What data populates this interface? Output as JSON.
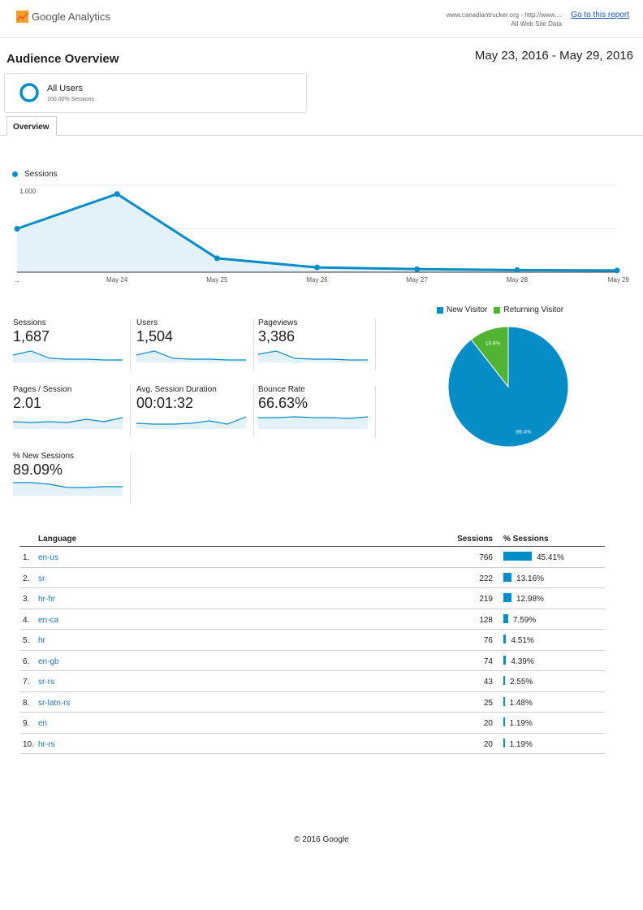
{
  "header": {
    "app_name": "Google Analytics",
    "site_line1": "www.canadiantrucker.org - http://www....",
    "site_line2": "All Web Site Data",
    "goto_link": "Go to this report"
  },
  "page": {
    "title": "Audience Overview",
    "date_range": "May 23, 2016 - May 29, 2016"
  },
  "segment": {
    "name": "All Users",
    "subtitle": "100.00% Sessions"
  },
  "tabs": [
    {
      "label": "Overview"
    }
  ],
  "colors": {
    "accent": "#058dc7",
    "returning": "#50b432",
    "link": "#1a73c8"
  },
  "chart_data": [
    {
      "type": "line",
      "legend": "Sessions",
      "categories": [
        "...",
        "May 24",
        "May 25",
        "May 26",
        "May 27",
        "May 28",
        "May 29"
      ],
      "values": [
        500,
        900,
        160,
        55,
        35,
        25,
        20
      ],
      "y_ticks": [
        "1,000",
        "500"
      ],
      "ylim": [
        0,
        1000
      ]
    },
    {
      "type": "pie",
      "series": [
        {
          "name": "New Visitor",
          "value": 89.4,
          "label": "89.4%"
        },
        {
          "name": "Returning Visitor",
          "value": 10.6,
          "label": "10.6%"
        }
      ]
    }
  ],
  "metrics": [
    {
      "label": "Sessions",
      "value": "1,687"
    },
    {
      "label": "Users",
      "value": "1,504"
    },
    {
      "label": "Pageviews",
      "value": "3,386"
    },
    {
      "label": "Pages / Session",
      "value": "2.01"
    },
    {
      "label": "Avg. Session Duration",
      "value": "00:01:32"
    },
    {
      "label": "Bounce Rate",
      "value": "66.63%"
    },
    {
      "label": "% New Sessions",
      "value": "89.09%"
    }
  ],
  "table": {
    "headers": {
      "language": "Language",
      "sessions": "Sessions",
      "pct": "% Sessions"
    },
    "rows": [
      {
        "idx": "1.",
        "name": "en-us",
        "sessions": "766",
        "pct": "45.41%",
        "share": 45.41
      },
      {
        "idx": "2.",
        "name": "sr",
        "sessions": "222",
        "pct": "13.16%",
        "share": 13.16
      },
      {
        "idx": "3.",
        "name": "hr-hr",
        "sessions": "219",
        "pct": "12.98%",
        "share": 12.98
      },
      {
        "idx": "4.",
        "name": "en-ca",
        "sessions": "128",
        "pct": "7.59%",
        "share": 7.59
      },
      {
        "idx": "5.",
        "name": "hr",
        "sessions": "76",
        "pct": "4.51%",
        "share": 4.51
      },
      {
        "idx": "6.",
        "name": "en-gb",
        "sessions": "74",
        "pct": "4.39%",
        "share": 4.39
      },
      {
        "idx": "7.",
        "name": "sr-rs",
        "sessions": "43",
        "pct": "2.55%",
        "share": 2.55
      },
      {
        "idx": "8.",
        "name": "sr-latn-rs",
        "sessions": "25",
        "pct": "1.48%",
        "share": 1.48
      },
      {
        "idx": "9.",
        "name": "en",
        "sessions": "20",
        "pct": "1.19%",
        "share": 1.19
      },
      {
        "idx": "10.",
        "name": "hr-rs",
        "sessions": "20",
        "pct": "1.19%",
        "share": 1.19
      }
    ]
  },
  "footer": {
    "text": "© 2016 Google"
  }
}
